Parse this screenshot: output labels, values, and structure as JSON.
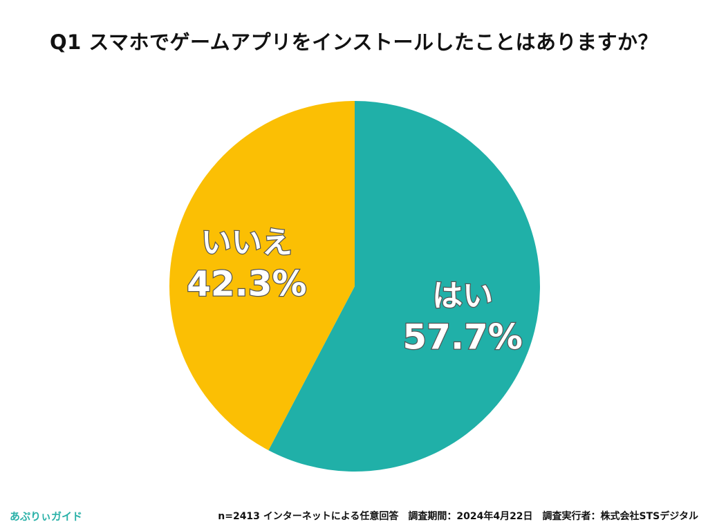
{
  "chart_data": {
    "type": "pie",
    "title": "Q1 スマホでゲームアプリをインストールしたことはありますか？",
    "slices": [
      {
        "label": "はい",
        "value": 57.7,
        "value_text": "57.7%",
        "color": "#20b0a8"
      },
      {
        "label": "いいえ",
        "value": 42.3,
        "value_text": "42.3%",
        "color": "#fbbf04"
      }
    ]
  },
  "footer": {
    "brand": "あぷりぃガイド",
    "note": "n=2413 インターネットによる任意回答　調査期間：2024年4月22日　調査実行者：株式会社STSデジタル"
  }
}
